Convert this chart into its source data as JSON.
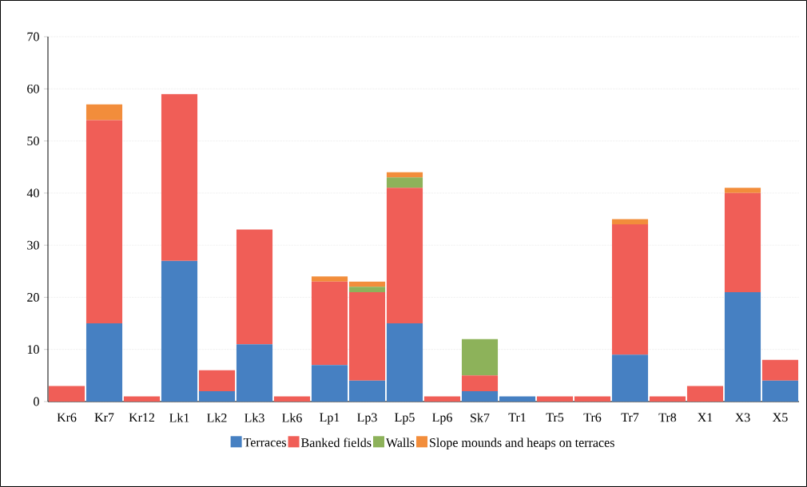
{
  "chart_data": {
    "type": "bar",
    "stacked": true,
    "categories": [
      "Kr6",
      "Kr7",
      "Kr12",
      "Lk1",
      "Lk2",
      "Lk3",
      "Lk6",
      "Lp1",
      "Lp3",
      "Lp5",
      "Lp6",
      "Sk7",
      "Tr1",
      "Tr5",
      "Tr6",
      "Tr7",
      "Tr8",
      "X1",
      "X3",
      "X5"
    ],
    "series": [
      {
        "name": "Terraces",
        "color": "#4680c2",
        "values": [
          0,
          15,
          0,
          27,
          2,
          11,
          0,
          7,
          4,
          15,
          0,
          2,
          1,
          0,
          0,
          9,
          0,
          0,
          21,
          4
        ]
      },
      {
        "name": "Banked fields",
        "color": "#f05e57",
        "values": [
          3,
          39,
          1,
          32,
          4,
          22,
          1,
          16,
          17,
          26,
          1,
          3,
          0,
          1,
          1,
          25,
          1,
          3,
          19,
          4
        ]
      },
      {
        "name": "Walls",
        "color": "#8db25a",
        "values": [
          0,
          0,
          0,
          0,
          0,
          0,
          0,
          0,
          1,
          2,
          0,
          7,
          0,
          0,
          0,
          0,
          0,
          0,
          0,
          0
        ]
      },
      {
        "name": "Slope mounds and heaps on terraces",
        "color": "#f28d3b",
        "values": [
          0,
          3,
          0,
          0,
          0,
          0,
          0,
          1,
          1,
          1,
          0,
          0,
          0,
          0,
          0,
          1,
          0,
          0,
          1,
          0
        ]
      }
    ],
    "ylim": [
      0,
      70
    ],
    "yticks": [
      0,
      10,
      20,
      30,
      40,
      50,
      60,
      70
    ],
    "grid": "y",
    "legend": "bottom"
  }
}
